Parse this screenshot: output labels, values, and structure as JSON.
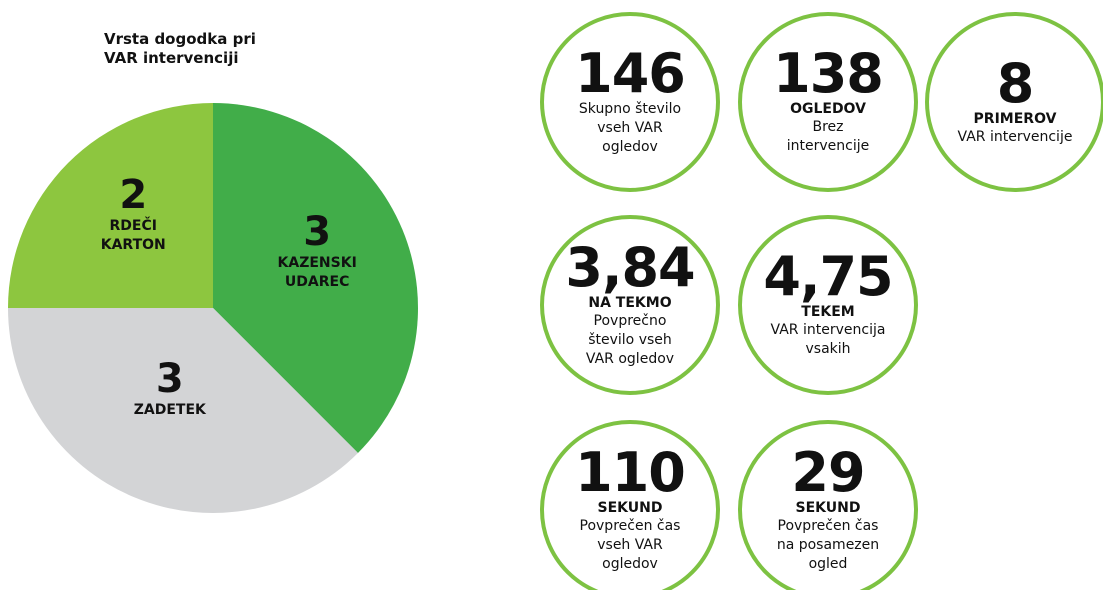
{
  "chart_data": {
    "type": "pie",
    "title": "Vrsta dogodka pri VAR intervenciji",
    "categories": [
      "KAZENSKI UDAREC",
      "ZADETEK",
      "RDEČI KARTON"
    ],
    "values": [
      3,
      3,
      2
    ],
    "colors": [
      "#41ad49",
      "#d3d4d6",
      "#8dc63f"
    ]
  },
  "stats": [
    {
      "number": "146",
      "description": "Skupno število vseh VAR ogledov"
    },
    {
      "number": "138",
      "unit": "OGLEDOV",
      "description": "Brez intervencije"
    },
    {
      "number": "8",
      "unit": "PRIMEROV",
      "description": "VAR intervencije"
    },
    {
      "number": "3,84",
      "unit": "NA TEKMO",
      "description": "Povprečno število vseh VAR ogledov"
    },
    {
      "number": "4,75",
      "unit": "TEKEM",
      "description": "VAR intervencija vsakih"
    },
    {
      "number": "110",
      "unit": "SEKUND",
      "description": "Povprečen čas vseh VAR ogledov"
    },
    {
      "number": "29",
      "unit": "SEKUND",
      "description": "Povprečen čas na posamezen ogled"
    }
  ]
}
